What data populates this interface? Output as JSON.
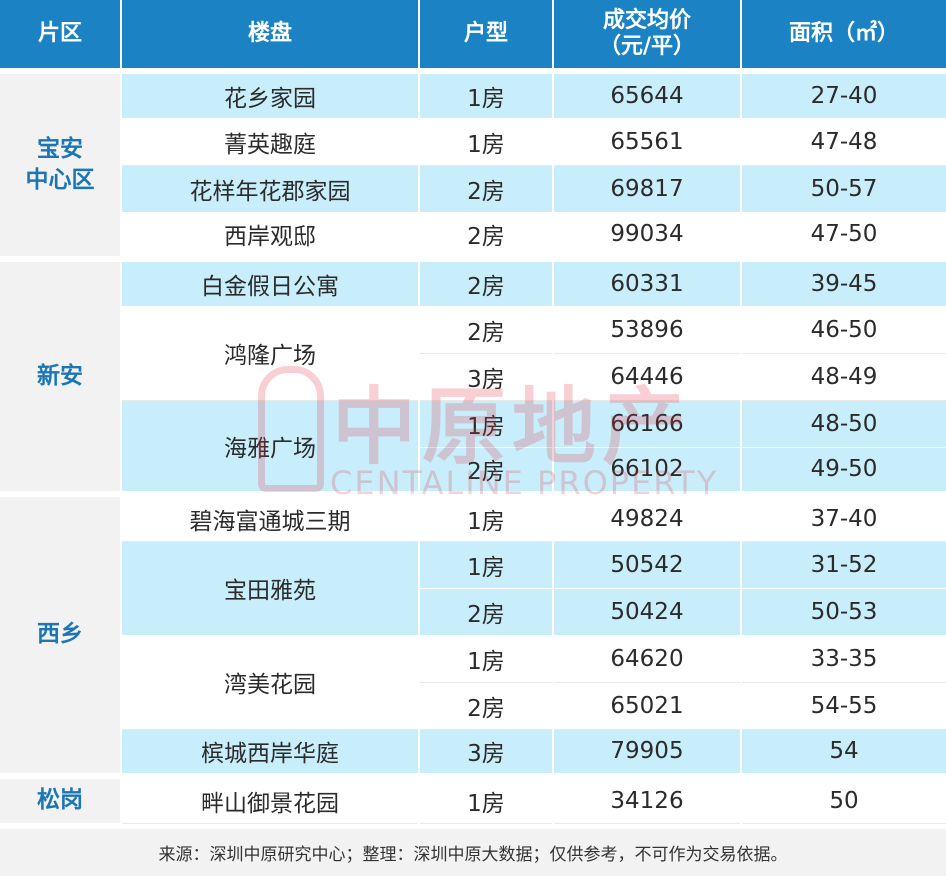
{
  "headers": {
    "district": "片区",
    "project": "楼盘",
    "unit_type": "户型",
    "price_line1": "成交均价",
    "price_line2": "（元/平）",
    "area": "面积（㎡）"
  },
  "districts": [
    {
      "name_line1": "宝安",
      "name_line2": "中心区"
    },
    {
      "name_line1": "新安",
      "name_line2": ""
    },
    {
      "name_line1": "西乡",
      "name_line2": ""
    },
    {
      "name_line1": "松岗",
      "name_line2": ""
    }
  ],
  "projects": [
    "花乡家园",
    "菁英趣庭",
    "花样年花郡家园",
    "西岸观邸",
    "白金假日公寓",
    "鸿隆广场",
    "海雅广场",
    "碧海富通城三期",
    "宝田雅苑",
    "湾美花园",
    "槟城西岸华庭",
    "畔山御景花园"
  ],
  "rows": [
    {
      "type": "1房",
      "price": "65644",
      "area": "27-40"
    },
    {
      "type": "1房",
      "price": "65561",
      "area": "47-48"
    },
    {
      "type": "2房",
      "price": "69817",
      "area": "50-57"
    },
    {
      "type": "2房",
      "price": "99034",
      "area": "47-50"
    },
    {
      "type": "2房",
      "price": "60331",
      "area": "39-45"
    },
    {
      "type": "2房",
      "price": "53896",
      "area": "46-50"
    },
    {
      "type": "3房",
      "price": "64446",
      "area": "48-49"
    },
    {
      "type": "1房",
      "price": "66166",
      "area": "48-50"
    },
    {
      "type": "2房",
      "price": "66102",
      "area": "49-50"
    },
    {
      "type": "1房",
      "price": "49824",
      "area": "37-40"
    },
    {
      "type": "1房",
      "price": "50542",
      "area": "31-52"
    },
    {
      "type": "2房",
      "price": "50424",
      "area": "50-53"
    },
    {
      "type": "1房",
      "price": "64620",
      "area": "33-35"
    },
    {
      "type": "2房",
      "price": "65021",
      "area": "54-55"
    },
    {
      "type": "3房",
      "price": "79905",
      "area": "54"
    },
    {
      "type": "1房",
      "price": "34126",
      "area": "50"
    }
  ],
  "footer": "来源：深圳中原研究中心；整理：深圳中原大数据；仅供参考，不可作为交易依据。",
  "watermark": {
    "title": "中原地产",
    "subtitle": "CENTALINE PROPERTY"
  },
  "colors": {
    "header_bg": "#1b83c4",
    "row_blue": "#c9eefb",
    "district_text": "#1c76b4",
    "district_bg": "#f2f2f2"
  }
}
